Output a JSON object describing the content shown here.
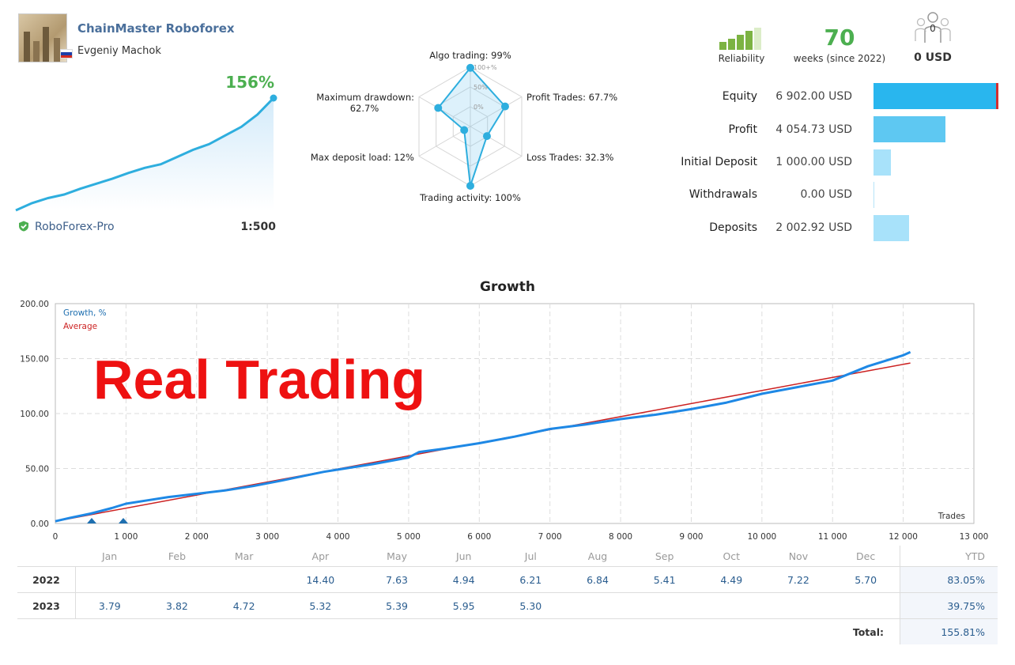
{
  "account": {
    "title": "ChainMaster Roboforex",
    "owner": "Evgeniy Machok",
    "growth_pct": "156%",
    "broker": "RoboForex-Pro",
    "leverage": "1:500"
  },
  "radar": {
    "axes": [
      {
        "label": "Algo trading: 99%",
        "value": 99
      },
      {
        "label": "Profit Trades: 67.7%",
        "value": 67.7
      },
      {
        "label": "Loss Trades: 32.3%",
        "value": 32.3
      },
      {
        "label": "Trading activity: 100%",
        "value": 100
      },
      {
        "label": "Max deposit load: 12%",
        "value": 12
      },
      {
        "label": "Maximum drawdown:",
        "label2": "62.7%",
        "value": 62.7
      }
    ],
    "scale_labels": [
      "100+%",
      "50%",
      "0%"
    ]
  },
  "reliability": {
    "label": "Reliability",
    "bars_filled": 4,
    "bars_total": 5
  },
  "weeks": {
    "value": "70",
    "label": "weeks (since 2022)"
  },
  "subscribers": {
    "count": "0",
    "amount": "0 USD"
  },
  "stats": [
    {
      "name": "Equity",
      "value": "6 902.00 USD",
      "amount": 6902.0,
      "color": "#29b6ee",
      "marker": true
    },
    {
      "name": "Profit",
      "value": "4 054.73 USD",
      "amount": 4054.73,
      "color": "#5ec8f2"
    },
    {
      "name": "Initial Deposit",
      "value": "1 000.00 USD",
      "amount": 1000.0,
      "color": "#a8e2fa"
    },
    {
      "name": "Withdrawals",
      "value": "0.00 USD",
      "amount": 0.0,
      "color": "#a8e2fa"
    },
    {
      "name": "Deposits",
      "value": "2 002.92 USD",
      "amount": 2002.92,
      "color": "#a8e2fa"
    }
  ],
  "chart_data": {
    "type": "line",
    "title": "Growth",
    "xlabel": "Trades",
    "ylabel": "",
    "xlim": [
      0,
      13000
    ],
    "ylim": [
      0,
      200
    ],
    "x_ticks": [
      "0",
      "1 000",
      "2 000",
      "3 000",
      "4 000",
      "5 000",
      "6 000",
      "7 000",
      "8 000",
      "9 000",
      "10 000",
      "11 000",
      "12 000",
      "13 000"
    ],
    "y_ticks": [
      "0.00",
      "50.00",
      "100.00",
      "150.00",
      "200.00"
    ],
    "grid": true,
    "legend_position": "top-left",
    "overlay_text": "Real Trading",
    "series": [
      {
        "name": "Growth, %",
        "color": "#1e88e5",
        "x": [
          0,
          200,
          500,
          800,
          1000,
          1300,
          1600,
          2000,
          2400,
          2800,
          3200,
          3500,
          3800,
          4000,
          4500,
          5000,
          5150,
          5500,
          6000,
          6500,
          7000,
          7500,
          8000,
          8500,
          9000,
          9500,
          10000,
          10500,
          11000,
          11500,
          12000,
          12100
        ],
        "y": [
          2,
          5,
          9,
          14,
          18,
          21,
          24,
          27,
          30,
          34,
          39,
          43,
          47,
          49,
          54,
          60,
          65,
          68,
          73,
          79,
          86,
          90,
          95,
          99,
          104,
          110,
          118,
          124,
          130,
          143,
          153,
          156
        ]
      },
      {
        "name": "Average",
        "color": "#cc2222",
        "x": [
          0,
          12100
        ],
        "y": [
          2,
          146
        ]
      }
    ]
  },
  "balance_sparkline": {
    "x": [
      0,
      1,
      2,
      3,
      4,
      5,
      6,
      7,
      8,
      9,
      10,
      11,
      12,
      13,
      14,
      15,
      16
    ],
    "y": [
      0,
      10,
      17,
      22,
      30,
      37,
      44,
      52,
      59,
      64,
      74,
      84,
      92,
      104,
      116,
      133,
      156
    ]
  },
  "monthly": {
    "months": [
      "Jan",
      "Feb",
      "Mar",
      "Apr",
      "May",
      "Jun",
      "Jul",
      "Aug",
      "Sep",
      "Oct",
      "Nov",
      "Dec"
    ],
    "ytd_label": "YTD",
    "rows": [
      {
        "year": "2022",
        "values": [
          "",
          "",
          "",
          "14.40",
          "7.63",
          "4.94",
          "6.21",
          "6.84",
          "5.41",
          "4.49",
          "7.22",
          "5.70"
        ],
        "ytd": "83.05%"
      },
      {
        "year": "2023",
        "values": [
          "3.79",
          "3.82",
          "4.72",
          "5.32",
          "5.39",
          "5.95",
          "5.30",
          "",
          "",
          "",
          "",
          ""
        ],
        "ytd": "39.75%"
      }
    ],
    "total_label": "Total:",
    "total_value": "155.81%"
  }
}
